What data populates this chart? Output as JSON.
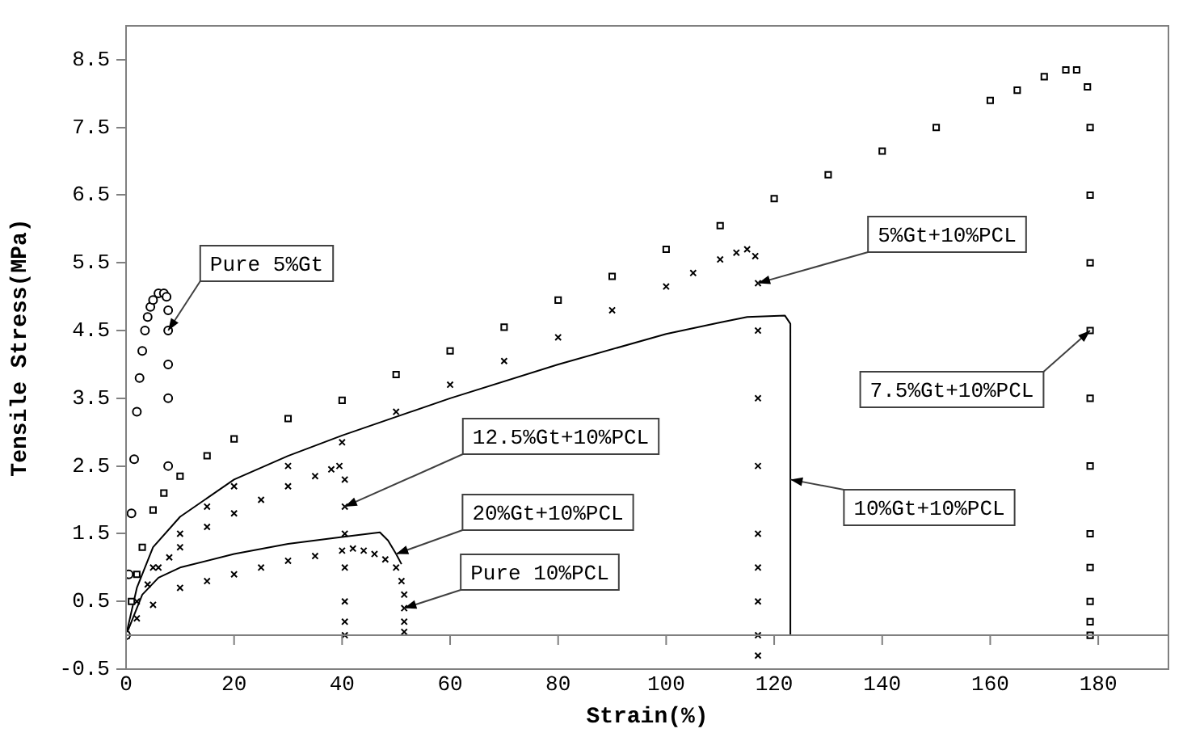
{
  "chart_data": {
    "type": "line",
    "xlabel": "Strain(%)",
    "ylabel": "Tensile Stress(MPa)",
    "xlim": [
      0,
      193
    ],
    "xticks": [
      0,
      20,
      40,
      60,
      80,
      100,
      120,
      140,
      160,
      180
    ],
    "ylim": [
      -0.5,
      9
    ],
    "yticks": [
      -0.5,
      0.5,
      1.5,
      2.5,
      3.5,
      4.5,
      5.5,
      6.5,
      7.5,
      8.5
    ],
    "grid": false,
    "legend": false,
    "ref_lines": [
      {
        "axis": "y",
        "value": 0,
        "color": "#808080"
      }
    ],
    "series": [
      {
        "type": "scatter",
        "marker": "circle",
        "color": "#000000",
        "x": [
          0,
          0.5,
          1,
          1.5,
          2,
          2.5,
          3,
          3.5,
          4,
          4.5,
          5,
          6,
          7,
          7.5,
          7.8,
          7.8,
          7.8,
          7.8,
          7.8
        ],
        "values": [
          0,
          0.9,
          1.8,
          2.6,
          3.3,
          3.8,
          4.2,
          4.5,
          4.7,
          4.85,
          4.95,
          5.05,
          5.05,
          5.0,
          4.8,
          4.5,
          4.0,
          3.5,
          2.5
        ]
      },
      {
        "type": "scatter",
        "marker": "square",
        "color": "#000000",
        "x": [
          0,
          1,
          2,
          3,
          5,
          7,
          10,
          15,
          20,
          30,
          40,
          50,
          60,
          70,
          80,
          90,
          100,
          110,
          120,
          130,
          140,
          150,
          160,
          165,
          170,
          174,
          176,
          178,
          178.5,
          178.5,
          178.5,
          178.5,
          178.5,
          178.5,
          178.5,
          178.5,
          178.5,
          178.5,
          178.5
        ],
        "values": [
          0,
          0.5,
          0.9,
          1.3,
          1.85,
          2.1,
          2.35,
          2.65,
          2.9,
          3.2,
          3.47,
          3.85,
          4.2,
          4.55,
          4.95,
          5.3,
          5.7,
          6.05,
          6.45,
          6.8,
          7.15,
          7.5,
          7.9,
          8.05,
          8.25,
          8.35,
          8.35,
          8.1,
          7.5,
          6.5,
          5.5,
          4.5,
          3.5,
          2.5,
          1.5,
          1.0,
          0.5,
          0.2,
          0
        ]
      },
      {
        "type": "scatter",
        "marker": "cross",
        "color": "#000000",
        "x": [
          2,
          5,
          10,
          15,
          20,
          30,
          40,
          50,
          60,
          70,
          80,
          90,
          100,
          105,
          110,
          113,
          115,
          116.5,
          117,
          117,
          117,
          117,
          117,
          117,
          117,
          117,
          117
        ],
        "values": [
          0.5,
          1.0,
          1.5,
          1.9,
          2.2,
          2.5,
          2.85,
          3.3,
          3.7,
          4.05,
          4.4,
          4.8,
          5.15,
          5.35,
          5.55,
          5.65,
          5.7,
          5.6,
          5.2,
          4.5,
          3.5,
          2.5,
          1.5,
          1.0,
          0.5,
          0,
          -0.3
        ]
      },
      {
        "type": "line",
        "marker": "none",
        "line_style": "solid",
        "color": "#000000",
        "x": [
          0,
          2,
          5,
          10,
          20,
          30,
          40,
          60,
          80,
          100,
          110,
          115,
          122,
          123,
          123
        ],
        "values": [
          0,
          0.7,
          1.3,
          1.75,
          2.3,
          2.65,
          2.95,
          3.5,
          4.0,
          4.45,
          4.62,
          4.7,
          4.72,
          4.6,
          0
        ]
      },
      {
        "type": "scatter",
        "marker": "cross",
        "color": "#000000",
        "x": [
          4,
          6,
          8,
          10,
          15,
          20,
          25,
          30,
          35,
          38,
          39.5,
          40.5,
          40.5,
          40.5,
          40.5,
          40.5,
          40.5,
          40.5
        ],
        "values": [
          0.75,
          1.0,
          1.15,
          1.3,
          1.6,
          1.8,
          2.0,
          2.2,
          2.35,
          2.45,
          2.5,
          2.3,
          1.9,
          1.5,
          1.0,
          0.5,
          0.2,
          0
        ]
      },
      {
        "type": "line",
        "marker": "none",
        "line_style": "solid",
        "color": "#000000",
        "x": [
          0,
          3,
          6,
          10,
          20,
          30,
          40,
          47,
          48.5,
          50,
          51
        ],
        "values": [
          0,
          0.6,
          0.85,
          1.0,
          1.2,
          1.35,
          1.45,
          1.52,
          1.4,
          1.2,
          1.05
        ]
      },
      {
        "type": "scatter",
        "marker": "cross",
        "color": "#000000",
        "x": [
          2,
          5,
          10,
          15,
          20,
          25,
          30,
          35,
          40,
          42,
          44,
          46,
          48,
          50,
          51,
          51.5,
          51.5,
          51.5,
          51.5
        ],
        "values": [
          0.25,
          0.45,
          0.7,
          0.8,
          0.9,
          1.0,
          1.1,
          1.17,
          1.25,
          1.28,
          1.25,
          1.2,
          1.12,
          1.0,
          0.8,
          0.6,
          0.4,
          0.2,
          0.05
        ]
      }
    ],
    "annotations": [
      {
        "text": "Pure 5%Gt",
        "x": 7.8,
        "y": 4.5
      },
      {
        "text": "5%Gt+10%PCL",
        "x": 117,
        "y": 5.2
      },
      {
        "text": "7.5%Gt+10%PCL",
        "x": 178.5,
        "y": 4.5
      },
      {
        "text": "12.5%Gt+10%PCL",
        "x": 40.5,
        "y": 1.9
      },
      {
        "text": "10%Gt+10%PCL",
        "x": 123,
        "y": 2.3
      },
      {
        "text": "20%Gt+10%PCL",
        "x": 50,
        "y": 1.2
      },
      {
        "text": "Pure 10%PCL",
        "x": 51.5,
        "y": 0.4
      }
    ]
  }
}
